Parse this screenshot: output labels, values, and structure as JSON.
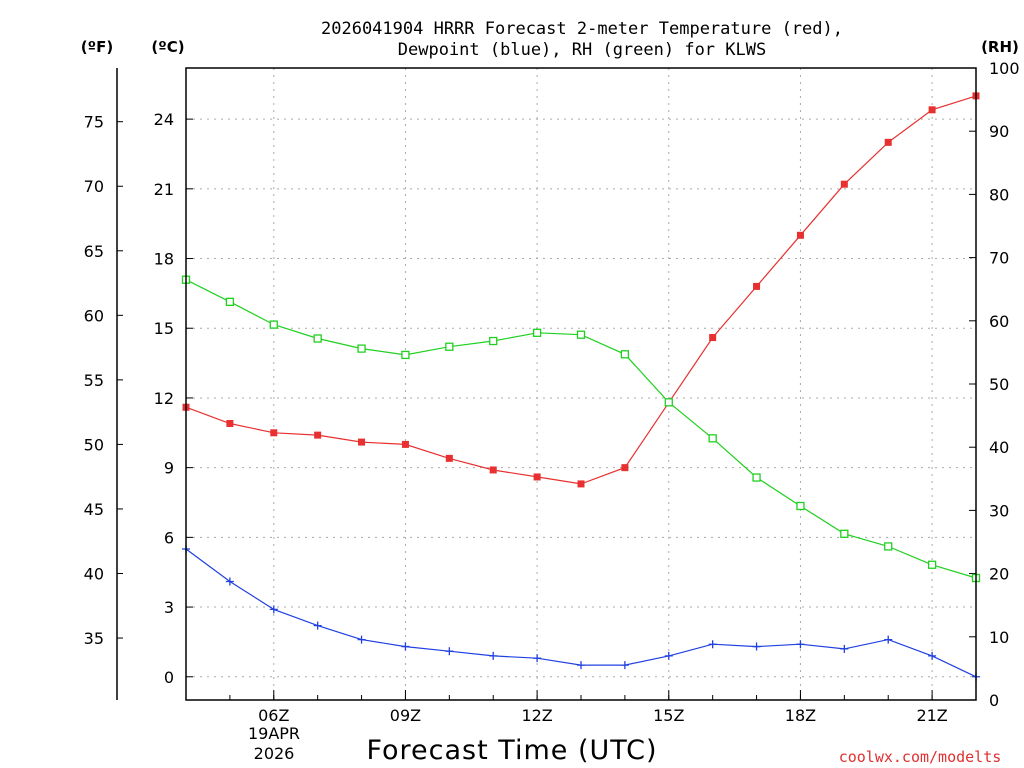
{
  "chart_data": {
    "type": "line",
    "title_line1": "2026041904 HRRR Forecast 2-meter Temperature (red),",
    "title_line2": "Dewpoint (blue), RH (green) for KLWS",
    "xlabel": "Forecast Time (UTC)",
    "credit": "coolwx.com/modelts",
    "left_unit_f": "(ºF)",
    "left_unit_c": "(ºC)",
    "right_unit": "(RH)",
    "x_hours": [
      4,
      5,
      6,
      7,
      8,
      9,
      10,
      11,
      12,
      13,
      14,
      15,
      16,
      17,
      18,
      19,
      20,
      21,
      22
    ],
    "x_ticks": [
      {
        "hour": 6,
        "label": "06Z"
      },
      {
        "hour": 9,
        "label": "09Z"
      },
      {
        "hour": 12,
        "label": "12Z"
      },
      {
        "hour": 15,
        "label": "15Z"
      },
      {
        "hour": 18,
        "label": "18Z"
      },
      {
        "hour": 21,
        "label": "21Z"
      }
    ],
    "date_label_1": "19APR",
    "date_label_2": "2026",
    "xlim": [
      4,
      22
    ],
    "ylim_c": [
      -1,
      26.2
    ],
    "ylim_rh": [
      0,
      100
    ],
    "y_ticks_c": [
      "0",
      "3",
      "6",
      "9",
      "12",
      "15",
      "18",
      "21",
      "24"
    ],
    "y_ticks_f": [
      "35",
      "40",
      "45",
      "50",
      "55",
      "60",
      "65",
      "70",
      "75"
    ],
    "y_ticks_rh": [
      "0",
      "10",
      "20",
      "30",
      "40",
      "50",
      "60",
      "70",
      "80",
      "90",
      "100"
    ],
    "series": [
      {
        "name": "Temperature",
        "unit": "C",
        "color": "#e83030",
        "marker": "filled-square",
        "values": [
          11.6,
          10.9,
          10.5,
          10.4,
          10.1,
          10.0,
          9.4,
          8.9,
          8.6,
          8.3,
          9.0,
          11.8,
          14.6,
          16.8,
          19.0,
          21.2,
          23.0,
          24.4,
          25.0
        ]
      },
      {
        "name": "Dewpoint",
        "unit": "C",
        "color": "#2040e0",
        "marker": "plus",
        "values": [
          5.5,
          4.1,
          2.9,
          2.2,
          1.6,
          1.3,
          1.1,
          0.9,
          0.8,
          0.5,
          0.5,
          0.9,
          1.4,
          1.3,
          1.4,
          1.2,
          1.6,
          0.9,
          0.0
        ]
      },
      {
        "name": "RH",
        "unit": "%",
        "color": "#20d020",
        "marker": "open-square",
        "values": [
          66.5,
          63.0,
          59.4,
          57.2,
          55.6,
          54.6,
          55.9,
          56.8,
          58.1,
          57.8,
          54.7,
          47.1,
          41.4,
          35.2,
          30.7,
          26.3,
          24.3,
          21.4,
          19.3
        ]
      }
    ]
  }
}
